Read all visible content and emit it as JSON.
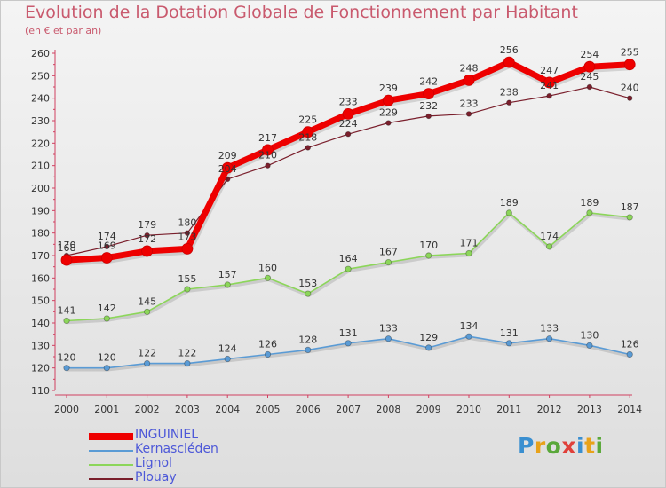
{
  "title": "Evolution de la Dotation Globale de Fonctionnement par Habitant",
  "subtitle": "(en € et par an)",
  "logo": "Proxiti",
  "chart_data": {
    "type": "line",
    "title": "Evolution de la Dotation Globale de Fonctionnement par Habitant",
    "subtitle": "(en € et par an)",
    "xlabel": "",
    "ylabel": "",
    "x": [
      "2000",
      "2001",
      "2002",
      "2003",
      "2004",
      "2005",
      "2006",
      "2007",
      "2008",
      "2009",
      "2010",
      "2011",
      "2012",
      "2013",
      "2014"
    ],
    "ylim": [
      110,
      260
    ],
    "yticks": [
      110,
      120,
      130,
      140,
      150,
      160,
      170,
      180,
      190,
      200,
      210,
      220,
      230,
      240,
      250,
      260
    ],
    "grid": false,
    "legend_position": "bottom-left",
    "series": [
      {
        "name": "INGUINIEL",
        "color": "#ee0000",
        "values": [
          168,
          169,
          172,
          173,
          209,
          217,
          225,
          233,
          239,
          242,
          248,
          256,
          247,
          254,
          255
        ]
      },
      {
        "name": "Kernascléden",
        "color": "#5a9bd5",
        "values": [
          120,
          120,
          122,
          122,
          124,
          126,
          128,
          131,
          133,
          129,
          134,
          131,
          133,
          130,
          126
        ]
      },
      {
        "name": "Lignol",
        "color": "#8cd65a",
        "values": [
          141,
          142,
          145,
          155,
          157,
          160,
          153,
          164,
          167,
          170,
          171,
          189,
          174,
          189,
          187
        ]
      },
      {
        "name": "Plouay",
        "color": "#7a1f2c",
        "values": [
          170,
          174,
          179,
          180,
          204,
          210,
          218,
          224,
          229,
          232,
          233,
          238,
          241,
          245,
          240
        ]
      }
    ]
  }
}
